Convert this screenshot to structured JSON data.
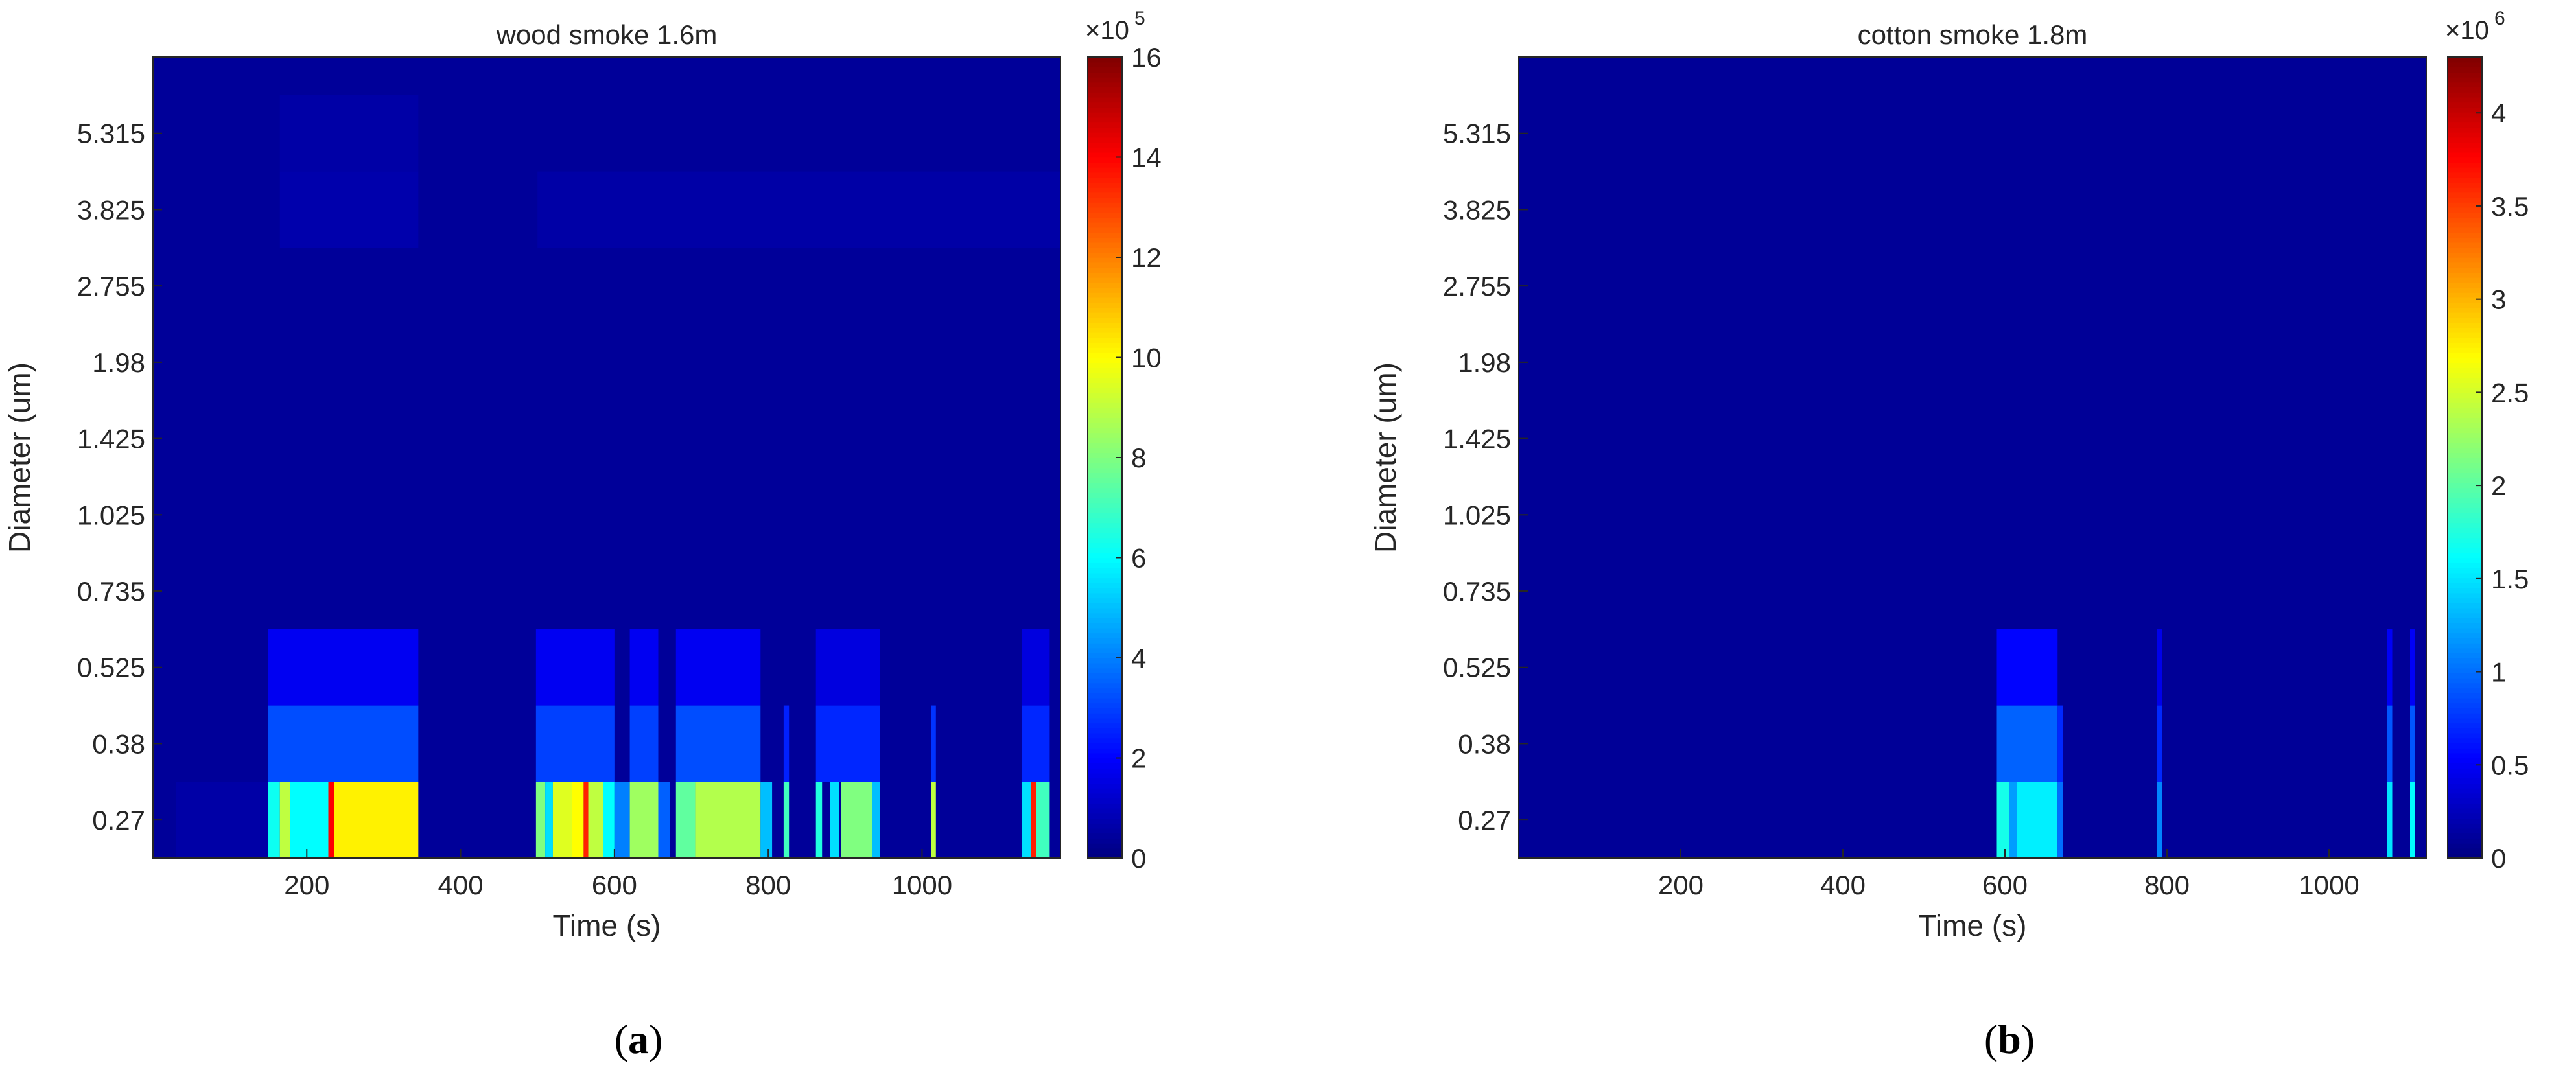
{
  "chart_data": [
    {
      "type": "heatmap",
      "panel_label": "a",
      "title": "wood smoke 1.6m",
      "xlabel": "Time (s)",
      "ylabel": "Diameter (um)",
      "xlim": [
        0,
        1180
      ],
      "x_ticks": [
        200,
        400,
        600,
        800,
        1000
      ],
      "y_categories": [
        "0.27",
        "0.38",
        "0.525",
        "0.735",
        "1.025",
        "1.425",
        "1.98",
        "2.755",
        "3.825",
        "5.315"
      ],
      "colorbar": {
        "min": 0,
        "max": 16,
        "ticks": [
          0,
          2,
          4,
          6,
          8,
          10,
          12,
          14,
          16
        ],
        "exponent_base": "×10",
        "exponent": "5"
      },
      "colormap": "jet",
      "background_value": 0.4,
      "cells": [
        {
          "x": [
            30,
            150
          ],
          "y": 0,
          "value": 0.6
        },
        {
          "x": [
            150,
            165
          ],
          "y": 0,
          "value": 6.2
        },
        {
          "x": [
            165,
            178
          ],
          "y": 0,
          "value": 9.0
        },
        {
          "x": [
            178,
            228
          ],
          "y": 0,
          "value": 6.0
        },
        {
          "x": [
            228,
            236
          ],
          "y": 0,
          "value": 14.0
        },
        {
          "x": [
            236,
            345
          ],
          "y": 0,
          "value": 10.2
        },
        {
          "x": [
            150,
            345
          ],
          "y": 1,
          "value": 3.2
        },
        {
          "x": [
            150,
            345
          ],
          "y": 2,
          "value": 1.8
        },
        {
          "x": [
            165,
            345
          ],
          "y": 8,
          "value": 0.7
        },
        {
          "x": [
            165,
            345
          ],
          "y": 9,
          "value": 0.6
        },
        {
          "x": [
            498,
            510
          ],
          "y": 0,
          "value": 8.0
        },
        {
          "x": [
            510,
            520
          ],
          "y": 0,
          "value": 5.5
        },
        {
          "x": [
            520,
            545
          ],
          "y": 0,
          "value": 9.5
        },
        {
          "x": [
            545,
            560
          ],
          "y": 0,
          "value": 10.0
        },
        {
          "x": [
            560,
            566
          ],
          "y": 0,
          "value": 13.5
        },
        {
          "x": [
            566,
            585
          ],
          "y": 0,
          "value": 9.0
        },
        {
          "x": [
            585,
            600
          ],
          "y": 0,
          "value": 6.0
        },
        {
          "x": [
            600,
            620
          ],
          "y": 0,
          "value": 4.0
        },
        {
          "x": [
            620,
            657
          ],
          "y": 0,
          "value": 8.5
        },
        {
          "x": [
            657,
            672
          ],
          "y": 0,
          "value": 3.5
        },
        {
          "x": [
            680,
            705
          ],
          "y": 0,
          "value": 7.5
        },
        {
          "x": [
            705,
            790
          ],
          "y": 0,
          "value": 8.8
        },
        {
          "x": [
            790,
            805
          ],
          "y": 0,
          "value": 5.0
        },
        {
          "x": [
            820,
            827
          ],
          "y": 0,
          "value": 7.0
        },
        {
          "x": [
            862,
            870
          ],
          "y": 0,
          "value": 6.5
        },
        {
          "x": [
            880,
            892
          ],
          "y": 0,
          "value": 5.5
        },
        {
          "x": [
            895,
            935
          ],
          "y": 0,
          "value": 8.0
        },
        {
          "x": [
            935,
            945
          ],
          "y": 0,
          "value": 5.0
        },
        {
          "x": [
            1012,
            1018
          ],
          "y": 0,
          "value": 9.0
        },
        {
          "x": [
            1130,
            1142
          ],
          "y": 0,
          "value": 5.5
        },
        {
          "x": [
            1142,
            1148
          ],
          "y": 0,
          "value": 13.5
        },
        {
          "x": [
            1148,
            1166
          ],
          "y": 0,
          "value": 7.0
        },
        {
          "x": [
            498,
            600
          ],
          "y": 1,
          "value": 3.0
        },
        {
          "x": [
            620,
            657
          ],
          "y": 1,
          "value": 3.0
        },
        {
          "x": [
            680,
            790
          ],
          "y": 1,
          "value": 3.2
        },
        {
          "x": [
            820,
            827
          ],
          "y": 1,
          "value": 2.5
        },
        {
          "x": [
            862,
            945
          ],
          "y": 1,
          "value": 2.6
        },
        {
          "x": [
            1012,
            1018
          ],
          "y": 1,
          "value": 2.8
        },
        {
          "x": [
            1130,
            1166
          ],
          "y": 1,
          "value": 2.6
        },
        {
          "x": [
            498,
            600
          ],
          "y": 2,
          "value": 1.8
        },
        {
          "x": [
            620,
            657
          ],
          "y": 2,
          "value": 1.8
        },
        {
          "x": [
            680,
            790
          ],
          "y": 2,
          "value": 1.8
        },
        {
          "x": [
            862,
            945
          ],
          "y": 2,
          "value": 1.5
        },
        {
          "x": [
            1130,
            1166
          ],
          "y": 2,
          "value": 1.5
        },
        {
          "x": [
            500,
            1180
          ],
          "y": 8,
          "value": 0.6
        }
      ]
    },
    {
      "type": "heatmap",
      "panel_label": "b",
      "title": "cotton smoke 1.8m",
      "xlabel": "Time (s)",
      "ylabel": "Diameter (um)",
      "xlim": [
        0,
        1120
      ],
      "x_ticks": [
        200,
        400,
        600,
        800,
        1000
      ],
      "y_categories": [
        "0.27",
        "0.38",
        "0.525",
        "0.735",
        "1.025",
        "1.425",
        "1.98",
        "2.755",
        "3.825",
        "5.315"
      ],
      "colorbar": {
        "min": 0,
        "max": 4.3,
        "ticks": [
          0,
          0.5,
          1,
          1.5,
          2,
          2.5,
          3,
          3.5,
          4
        ],
        "exponent_base": "×10",
        "exponent": "6"
      },
      "colormap": "jet",
      "background_value": 0.1,
      "cells": [
        {
          "x": [
            590,
            605
          ],
          "y": 0,
          "value": 1.7
        },
        {
          "x": [
            605,
            615
          ],
          "y": 0,
          "value": 1.2
        },
        {
          "x": [
            615,
            665
          ],
          "y": 0,
          "value": 1.55
        },
        {
          "x": [
            665,
            672
          ],
          "y": 0,
          "value": 1.0
        },
        {
          "x": [
            788,
            794
          ],
          "y": 0,
          "value": 1.1
        },
        {
          "x": [
            1072,
            1078
          ],
          "y": 0,
          "value": 1.5
        },
        {
          "x": [
            1100,
            1106
          ],
          "y": 0,
          "value": 1.6
        },
        {
          "x": [
            590,
            665
          ],
          "y": 1,
          "value": 0.95
        },
        {
          "x": [
            665,
            672
          ],
          "y": 1,
          "value": 0.7
        },
        {
          "x": [
            788,
            794
          ],
          "y": 1,
          "value": 0.7
        },
        {
          "x": [
            1072,
            1078
          ],
          "y": 1,
          "value": 0.9
        },
        {
          "x": [
            1100,
            1106
          ],
          "y": 1,
          "value": 0.9
        },
        {
          "x": [
            590,
            665
          ],
          "y": 2,
          "value": 0.55
        },
        {
          "x": [
            788,
            794
          ],
          "y": 2,
          "value": 0.45
        },
        {
          "x": [
            1072,
            1078
          ],
          "y": 2,
          "value": 0.5
        },
        {
          "x": [
            1100,
            1106
          ],
          "y": 2,
          "value": 0.5
        }
      ]
    }
  ]
}
